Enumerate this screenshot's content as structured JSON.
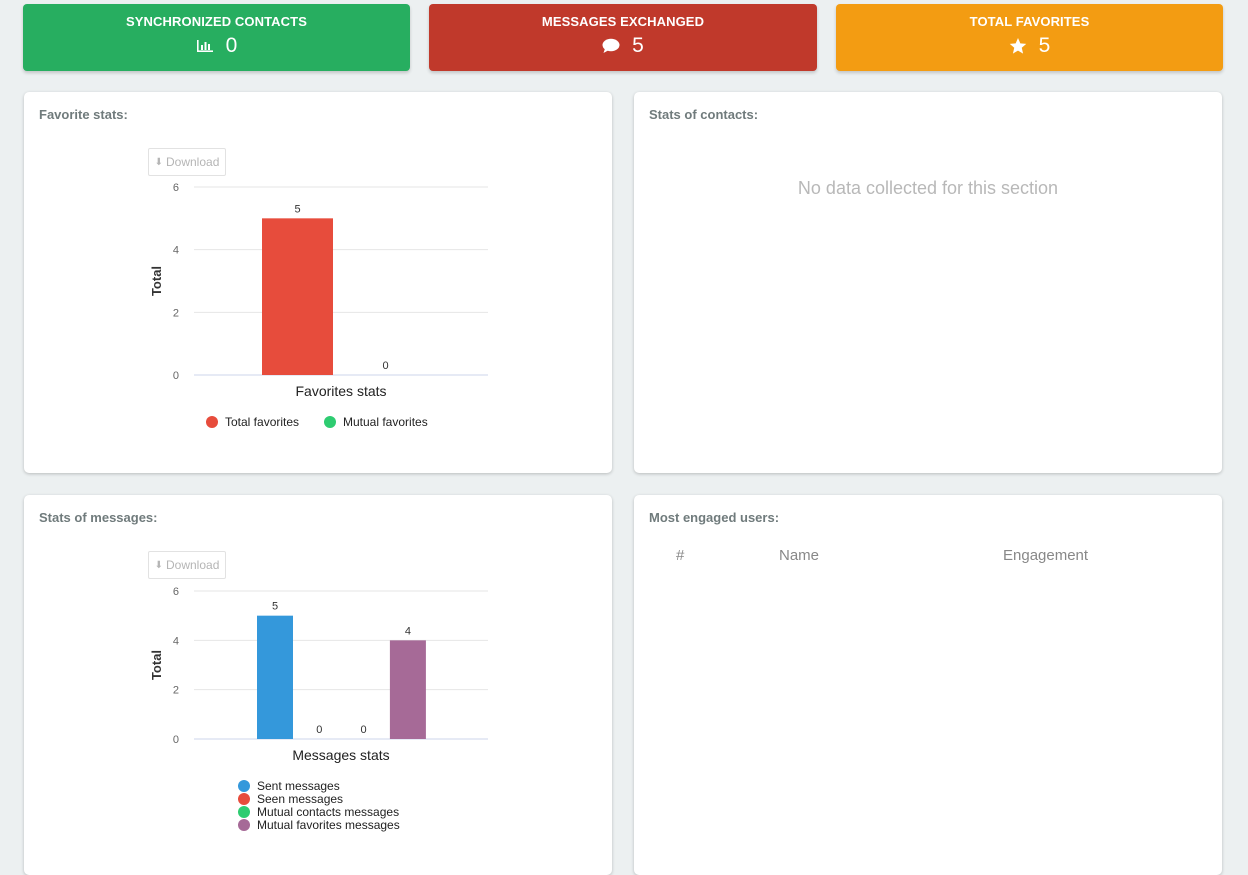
{
  "cards": [
    {
      "title": "SYNCHRONIZED CONTACTS",
      "value": "0",
      "icon": "bar-chart-icon",
      "color": "#27ae60"
    },
    {
      "title": "MESSAGES EXCHANGED",
      "value": "5",
      "icon": "comment-icon",
      "color": "#c0392b"
    },
    {
      "title": "TOTAL FAVORITES",
      "value": "5",
      "icon": "star-icon",
      "color": "#f39c12"
    }
  ],
  "panels": {
    "favorites": {
      "title": "Favorite stats:",
      "download_label": "Download"
    },
    "contacts": {
      "title": "Stats of contacts:",
      "empty_text": "No data collected for this section"
    },
    "messages": {
      "title": "Stats of messages:",
      "download_label": "Download"
    },
    "engaged": {
      "title": "Most engaged users:",
      "columns": [
        "#",
        "Name",
        "Engagement"
      ]
    }
  },
  "chart_data": [
    {
      "type": "bar",
      "xlabel": "Favorites stats",
      "ylabel": "Total",
      "ylim": [
        0,
        6
      ],
      "yticks": [
        0,
        2,
        4,
        6
      ],
      "series": [
        {
          "name": "Total favorites",
          "value": 5,
          "color": "#e74c3c"
        },
        {
          "name": "Mutual favorites",
          "value": 0,
          "color": "#2ecc71"
        }
      ],
      "grid": true,
      "legend": "bottom"
    },
    {
      "type": "bar",
      "xlabel": "Messages stats",
      "ylabel": "Total",
      "ylim": [
        0,
        6
      ],
      "yticks": [
        0,
        2,
        4,
        6
      ],
      "series": [
        {
          "name": "Sent messages",
          "value": 5,
          "color": "#3498db"
        },
        {
          "name": "Seen messages",
          "value": 0,
          "color": "#e74c3c"
        },
        {
          "name": "Mutual contacts messages",
          "value": 0,
          "color": "#2ecc71"
        },
        {
          "name": "Mutual favorites messages",
          "value": 4,
          "color": "#a66a97"
        }
      ],
      "grid": true,
      "legend": "bottom"
    }
  ]
}
